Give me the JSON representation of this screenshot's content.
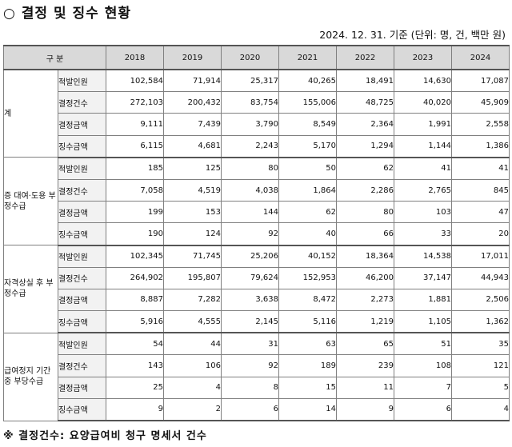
{
  "title": "○ 결정 및 징수 현황",
  "unit_note": "2024. 12. 31. 기준 (단위: 명, 건, 백만 원)",
  "header": {
    "category": "구 분",
    "years": [
      "2018",
      "2019",
      "2020",
      "2021",
      "2022",
      "2023",
      "2024"
    ]
  },
  "groups": [
    {
      "label": "계",
      "rows": [
        {
          "item": "적발인원",
          "values": [
            "102,584",
            "71,914",
            "25,317",
            "40,265",
            "18,491",
            "14,630",
            "17,087"
          ]
        },
        {
          "item": "결정건수",
          "values": [
            "272,103",
            "200,432",
            "83,754",
            "155,006",
            "48,725",
            "40,020",
            "45,909"
          ]
        },
        {
          "item": "결정금액",
          "values": [
            "9,111",
            "7,439",
            "3,790",
            "8,549",
            "2,364",
            "1,991",
            "2,558"
          ]
        },
        {
          "item": "징수금액",
          "values": [
            "6,115",
            "4,681",
            "2,243",
            "5,170",
            "1,294",
            "1,144",
            "1,386"
          ]
        }
      ]
    },
    {
      "label": "증 대여·도용 부정수급",
      "rows": [
        {
          "item": "적발인원",
          "values": [
            "185",
            "125",
            "80",
            "50",
            "62",
            "41",
            "41"
          ]
        },
        {
          "item": "결정건수",
          "values": [
            "7,058",
            "4,519",
            "4,038",
            "1,864",
            "2,286",
            "2,765",
            "845"
          ]
        },
        {
          "item": "결정금액",
          "values": [
            "199",
            "153",
            "144",
            "62",
            "80",
            "103",
            "47"
          ]
        },
        {
          "item": "징수금액",
          "values": [
            "190",
            "124",
            "92",
            "40",
            "66",
            "33",
            "20"
          ]
        }
      ]
    },
    {
      "label": "자격상실 후 부정수급",
      "rows": [
        {
          "item": "적발인원",
          "values": [
            "102,345",
            "71,745",
            "25,206",
            "40,152",
            "18,364",
            "14,538",
            "17,011"
          ]
        },
        {
          "item": "결정건수",
          "values": [
            "264,902",
            "195,807",
            "79,624",
            "152,953",
            "46,200",
            "37,147",
            "44,943"
          ]
        },
        {
          "item": "결정금액",
          "values": [
            "8,887",
            "7,282",
            "3,638",
            "8,472",
            "2,273",
            "1,881",
            "2,506"
          ]
        },
        {
          "item": "징수금액",
          "values": [
            "5,916",
            "4,555",
            "2,145",
            "5,116",
            "1,219",
            "1,105",
            "1,362"
          ]
        }
      ]
    },
    {
      "label": "급여정지 기간 중 부당수급",
      "rows": [
        {
          "item": "적발인원",
          "values": [
            "54",
            "44",
            "31",
            "63",
            "65",
            "51",
            "35"
          ]
        },
        {
          "item": "결정건수",
          "values": [
            "143",
            "106",
            "92",
            "189",
            "239",
            "108",
            "121"
          ]
        },
        {
          "item": "결정금액",
          "values": [
            "25",
            "4",
            "8",
            "15",
            "11",
            "7",
            "5"
          ]
        },
        {
          "item": "징수금액",
          "values": [
            "9",
            "2",
            "6",
            "14",
            "9",
            "6",
            "4"
          ]
        }
      ]
    }
  ],
  "footnote": "※ 결정건수: 요양급여비 청구 명세서 건수"
}
